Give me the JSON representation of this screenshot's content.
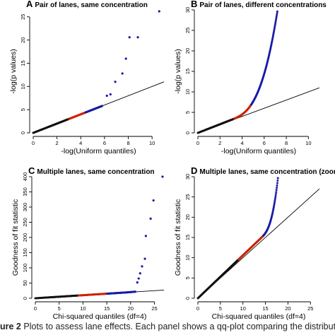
{
  "figure": {
    "caption_label": "ure 2",
    "caption_text": "Plots to assess lane effects. Each panel shows a qq-plot comparing the distribution",
    "colors": {
      "black_points": "#111111",
      "red_points": "#cc2200",
      "blue_points": "#1a1aa6",
      "axis": "#000000"
    }
  },
  "chart_data": [
    {
      "type": "scatter",
      "panel_letter": "A",
      "title": "Pair of lanes, same concentration",
      "xlabel": "-log(Uniform quantiles)",
      "ylabel": "-log(p values)",
      "xlim": [
        0,
        11
      ],
      "ylim": [
        0,
        26.5
      ],
      "xticks": [
        0,
        2,
        4,
        6,
        8,
        10
      ],
      "yticks": [
        0,
        5,
        10,
        15,
        20,
        25
      ],
      "reference_line": {
        "slope": 1.0,
        "intercept": 0
      },
      "curve": {
        "a": 1.0,
        "b": 0,
        "c": 0,
        "xmax": 5.8,
        "n": 200
      },
      "red_range": [
        3.0,
        4.4
      ],
      "series": [
        {
          "color": "#1a1aa6",
          "points": [
            [
              6.2,
              8.0
            ],
            [
              6.5,
              8.3
            ],
            [
              6.9,
              11.0
            ],
            [
              7.5,
              12.8
            ],
            [
              7.8,
              16.0
            ],
            [
              8.1,
              20.6
            ],
            [
              8.8,
              20.6
            ],
            [
              10.6,
              26.2
            ]
          ]
        }
      ]
    },
    {
      "type": "scatter",
      "panel_letter": "B",
      "title": "Pair of lanes, different concentrations",
      "xlabel": "-log(Uniform quantiles)",
      "ylabel": "-log(p values)",
      "xlim": [
        0,
        11
      ],
      "ylim": [
        0,
        30
      ],
      "xticks": [
        0,
        2,
        4,
        6,
        8,
        10
      ],
      "yticks": [
        0,
        5,
        10,
        15,
        20,
        25,
        30
      ],
      "reference_line": {
        "slope": 1.0,
        "intercept": 0
      },
      "curve": {
        "a": 1.05,
        "b": 0.3,
        "c": 3.0,
        "xmax": 7.4,
        "n": 240
      },
      "red_range": [
        3.3,
        4.8
      ],
      "series": []
    },
    {
      "type": "scatter",
      "panel_letter": "C",
      "title": "Multiple lanes, same concentration",
      "xlabel": "Chi-squared quantiles (df=4)",
      "ylabel": "Goodness of fit statistic",
      "xlim": [
        0,
        27
      ],
      "ylim": [
        0,
        400
      ],
      "xticks": [
        0,
        5,
        10,
        15,
        20,
        25
      ],
      "yticks": [
        0,
        50,
        100,
        150,
        200,
        250,
        300,
        350,
        400
      ],
      "reference_line": {
        "slope": 1.0,
        "intercept": 0
      },
      "curve": {
        "a": 1.0,
        "b": 0.01,
        "c": 17.0,
        "xmax": 21.0,
        "n": 220
      },
      "red_range": [
        9.0,
        15.0
      ],
      "series": [
        {
          "color": "#1a1aa6",
          "points": [
            [
              21.4,
              52.0
            ],
            [
              21.7,
              65.0
            ],
            [
              22.0,
              82.0
            ],
            [
              22.4,
              105.0
            ],
            [
              23.0,
              130.0
            ],
            [
              23.2,
              205.0
            ],
            [
              24.2,
              262.0
            ],
            [
              24.8,
              322.0
            ],
            [
              26.7,
              400.0
            ]
          ]
        }
      ]
    },
    {
      "type": "scatter",
      "panel_letter": "D",
      "title": "Multiple lanes, same concentration (zoomed)",
      "xlabel": "Chi-squared quantiles (df=4)",
      "ylabel": "Goodness of fit statistic",
      "xlim": [
        0,
        27
      ],
      "ylim": [
        0,
        30
      ],
      "xticks": [
        0,
        5,
        10,
        15,
        20,
        25
      ],
      "yticks": [
        0,
        5,
        10,
        15,
        20,
        25,
        30
      ],
      "reference_line": {
        "slope": 1.0,
        "intercept": 0
      },
      "curve": {
        "a": 1.06,
        "b": 0.2,
        "c": 14.0,
        "xmax": 18.3,
        "n": 240
      },
      "red_range": [
        9.0,
        14.5
      ],
      "series": []
    }
  ]
}
